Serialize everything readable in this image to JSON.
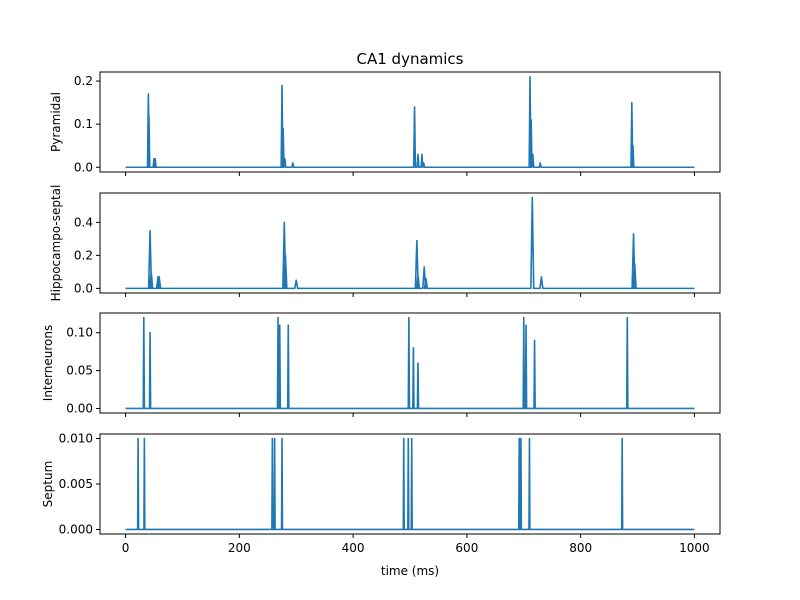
{
  "chart_data": {
    "type": "line",
    "title": "CA1 dynamics",
    "xlabel": "time (ms)",
    "xlim": [
      -45,
      1045
    ],
    "xticks": [
      0,
      200,
      400,
      600,
      800,
      1000
    ],
    "xtick_labels": [
      "0",
      "200",
      "400",
      "600",
      "800",
      "1000"
    ],
    "line_color": "#1f77b4",
    "grid": false,
    "legend": "none",
    "panels": [
      {
        "ylabel": "Pyramidal",
        "ylim": [
          -0.011,
          0.221
        ],
        "yticks": [
          0.0,
          0.1,
          0.2
        ],
        "ytick_labels": [
          "0.0",
          "0.1",
          "0.2"
        ],
        "spike_width_ms": 1.5,
        "spikes": [
          {
            "t": 40,
            "v": 0.17
          },
          {
            "t": 41,
            "v": 0.12
          },
          {
            "t": 50,
            "v": 0.02
          },
          {
            "t": 52,
            "v": 0.02
          },
          {
            "t": 275,
            "v": 0.19
          },
          {
            "t": 277,
            "v": 0.09
          },
          {
            "t": 280,
            "v": 0.02
          },
          {
            "t": 294,
            "v": 0.01
          },
          {
            "t": 508,
            "v": 0.14
          },
          {
            "t": 514,
            "v": 0.03
          },
          {
            "t": 521,
            "v": 0.03
          },
          {
            "t": 524,
            "v": 0.01
          },
          {
            "t": 711,
            "v": 0.21
          },
          {
            "t": 713,
            "v": 0.11
          },
          {
            "t": 716,
            "v": 0.03
          },
          {
            "t": 729,
            "v": 0.01
          },
          {
            "t": 890,
            "v": 0.15
          },
          {
            "t": 892,
            "v": 0.05
          }
        ]
      },
      {
        "ylabel": "Hippocampo-septal",
        "ylim": [
          -0.028,
          0.578
        ],
        "yticks": [
          0.0,
          0.2,
          0.4
        ],
        "ytick_labels": [
          "0.0",
          "0.2",
          "0.4"
        ],
        "spike_width_ms": 2.5,
        "spikes": [
          {
            "t": 43,
            "v": 0.35
          },
          {
            "t": 45,
            "v": 0.1
          },
          {
            "t": 57,
            "v": 0.07
          },
          {
            "t": 59,
            "v": 0.07
          },
          {
            "t": 279,
            "v": 0.4
          },
          {
            "t": 281,
            "v": 0.2
          },
          {
            "t": 300,
            "v": 0.05
          },
          {
            "t": 512,
            "v": 0.29
          },
          {
            "t": 514,
            "v": 0.08
          },
          {
            "t": 525,
            "v": 0.13
          },
          {
            "t": 528,
            "v": 0.06
          },
          {
            "t": 715,
            "v": 0.55
          },
          {
            "t": 731,
            "v": 0.07
          },
          {
            "t": 893,
            "v": 0.33
          },
          {
            "t": 895,
            "v": 0.15
          }
        ]
      },
      {
        "ylabel": "Interneurons",
        "ylim": [
          -0.006,
          0.126
        ],
        "yticks": [
          0.0,
          0.05,
          0.1
        ],
        "ytick_labels": [
          "0.00",
          "0.05",
          "0.10"
        ],
        "spike_width_ms": 1.0,
        "spikes": [
          {
            "t": 32,
            "v": 0.12
          },
          {
            "t": 43,
            "v": 0.1
          },
          {
            "t": 268,
            "v": 0.12
          },
          {
            "t": 271,
            "v": 0.11
          },
          {
            "t": 286,
            "v": 0.11
          },
          {
            "t": 498,
            "v": 0.12
          },
          {
            "t": 506,
            "v": 0.08
          },
          {
            "t": 514,
            "v": 0.06
          },
          {
            "t": 700,
            "v": 0.12
          },
          {
            "t": 704,
            "v": 0.11
          },
          {
            "t": 719,
            "v": 0.09
          },
          {
            "t": 882,
            "v": 0.12
          }
        ]
      },
      {
        "ylabel": "Septum",
        "ylim": [
          -0.0005,
          0.0105
        ],
        "yticks": [
          0.0,
          0.005,
          0.01
        ],
        "ytick_labels": [
          "0.000",
          "0.005",
          "0.010"
        ],
        "spike_width_ms": 0.8,
        "spikes": [
          {
            "t": 22,
            "v": 0.01
          },
          {
            "t": 33,
            "v": 0.01
          },
          {
            "t": 258,
            "v": 0.01
          },
          {
            "t": 262,
            "v": 0.01
          },
          {
            "t": 275,
            "v": 0.01
          },
          {
            "t": 489,
            "v": 0.01
          },
          {
            "t": 497,
            "v": 0.01
          },
          {
            "t": 503,
            "v": 0.01
          },
          {
            "t": 692,
            "v": 0.01
          },
          {
            "t": 695,
            "v": 0.01
          },
          {
            "t": 710,
            "v": 0.01
          },
          {
            "t": 873,
            "v": 0.01
          }
        ]
      }
    ]
  }
}
